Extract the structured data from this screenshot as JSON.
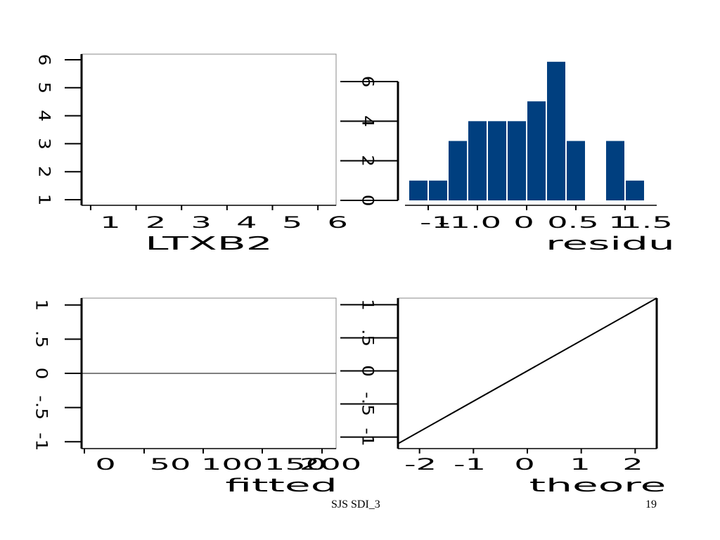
{
  "footer": {
    "left_text": "SJS SDI_3",
    "page_number": "19"
  },
  "colors": {
    "bar_fill": "#003f7f",
    "axis": "#000000",
    "background": "#ffffff"
  },
  "chart_data": [
    {
      "type": "scatter",
      "position": "top-left",
      "xlabel": "LTXB2",
      "ylabel": "",
      "xticks": [
        "1",
        "2",
        "3",
        "4",
        "5",
        "6"
      ],
      "yticks": [
        "1",
        "2",
        "3",
        "4",
        "5",
        "6"
      ],
      "xlim": [
        0.8,
        6.4
      ],
      "ylim": [
        0.8,
        6.2
      ],
      "points": []
    },
    {
      "type": "bar",
      "position": "top-right",
      "xlabel": "residu",
      "ylabel": "",
      "xticks": [
        "-1",
        "-1.0",
        "0",
        "0.5",
        "1",
        "1.5"
      ],
      "yticks": [
        "0",
        "2",
        "4",
        "6"
      ],
      "ylim": [
        0,
        6
      ],
      "values": [
        1,
        1,
        3,
        4,
        4,
        4,
        5,
        7,
        3,
        0,
        3,
        1
      ]
    },
    {
      "type": "scatter",
      "position": "bottom-left",
      "xlabel": "fitted",
      "ylabel": "",
      "xticks": [
        "0",
        "50",
        "100",
        "150",
        "200"
      ],
      "yticks": [
        "-1",
        "-.5",
        "0",
        ".5",
        "1"
      ],
      "ylim": [
        -1.1,
        1.1
      ],
      "reference_line": 0,
      "points": []
    },
    {
      "type": "line",
      "position": "bottom-right",
      "xlabel": "theore",
      "ylabel": "",
      "xticks": [
        "-2",
        "-1",
        "0",
        "1",
        "2"
      ],
      "yticks": [
        "-1",
        "-.5",
        "0",
        ".5",
        "1"
      ],
      "xlim": [
        -2.4,
        2.4
      ],
      "ylim": [
        -1.1,
        1.1
      ],
      "line": {
        "x": [
          -2.4,
          2.4
        ],
        "y": [
          -1.1,
          1.1
        ]
      }
    }
  ]
}
